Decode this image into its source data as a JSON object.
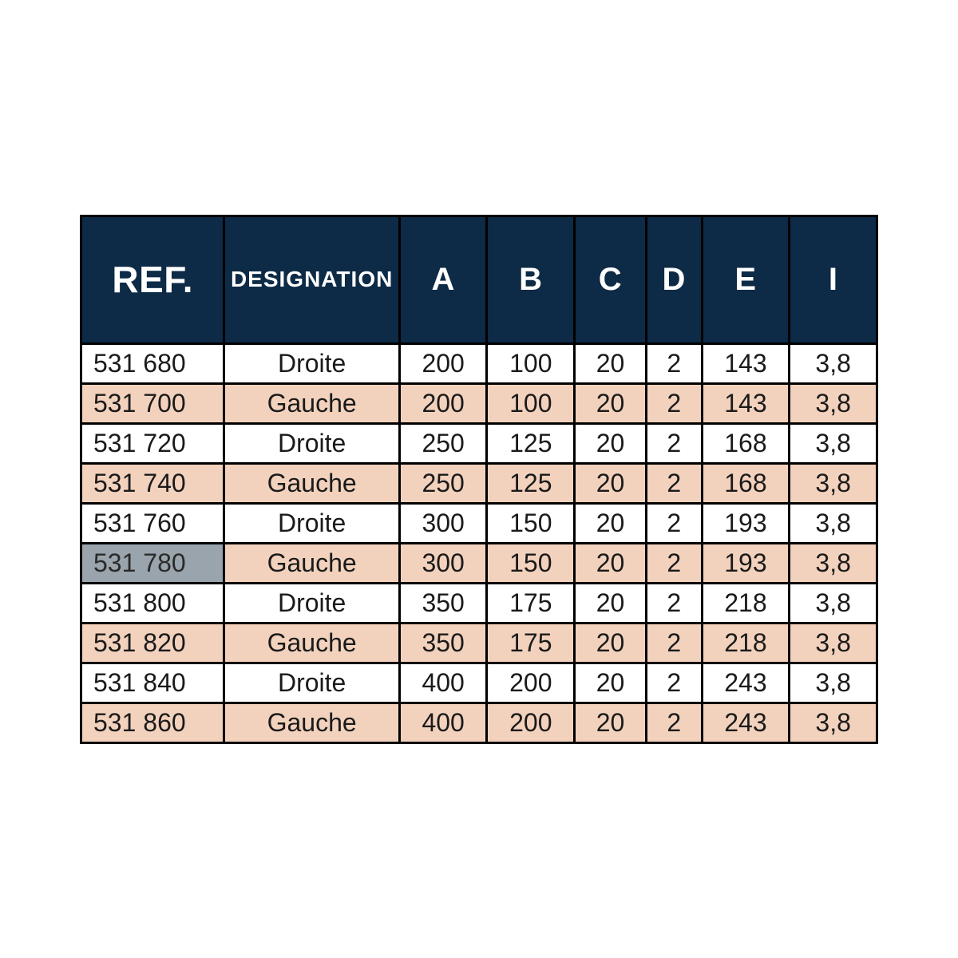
{
  "colors": {
    "header_bg": "#0d2a46",
    "header_fg": "#ffffff",
    "row_odd_bg": "#ffffff",
    "row_even_bg": "#f3d2bd",
    "highlight_bg": "#9aa4ac",
    "border": "#000000"
  },
  "table": {
    "columns": [
      {
        "key": "ref",
        "label": "REF.",
        "class": "col-ref"
      },
      {
        "key": "des",
        "label": "DESIGNATION",
        "class": "col-des"
      },
      {
        "key": "a",
        "label": "A",
        "class": "col-a"
      },
      {
        "key": "b",
        "label": "B",
        "class": "col-b"
      },
      {
        "key": "c",
        "label": "C",
        "class": "col-c"
      },
      {
        "key": "d",
        "label": "D",
        "class": "col-d"
      },
      {
        "key": "e",
        "label": "E",
        "class": "col-e"
      },
      {
        "key": "i",
        "label": "I",
        "class": "col-i"
      }
    ],
    "rows": [
      {
        "ref": "531 680",
        "des": "Droite",
        "a": "200",
        "b": "100",
        "c": "20",
        "d": "2",
        "e": "143",
        "i": "3,8"
      },
      {
        "ref": "531 700",
        "des": "Gauche",
        "a": "200",
        "b": "100",
        "c": "20",
        "d": "2",
        "e": "143",
        "i": "3,8"
      },
      {
        "ref": "531 720",
        "des": "Droite",
        "a": "250",
        "b": "125",
        "c": "20",
        "d": "2",
        "e": "168",
        "i": "3,8"
      },
      {
        "ref": "531 740",
        "des": "Gauche",
        "a": "250",
        "b": "125",
        "c": "20",
        "d": "2",
        "e": "168",
        "i": "3,8"
      },
      {
        "ref": "531 760",
        "des": "Droite",
        "a": "300",
        "b": "150",
        "c": "20",
        "d": "2",
        "e": "193",
        "i": "3,8"
      },
      {
        "ref": "531 780",
        "des": "Gauche",
        "a": "300",
        "b": "150",
        "c": "20",
        "d": "2",
        "e": "193",
        "i": "3,8",
        "highlight_ref": true
      },
      {
        "ref": "531 800",
        "des": "Droite",
        "a": "350",
        "b": "175",
        "c": "20",
        "d": "2",
        "e": "218",
        "i": "3,8"
      },
      {
        "ref": "531 820",
        "des": "Gauche",
        "a": "350",
        "b": "175",
        "c": "20",
        "d": "2",
        "e": "218",
        "i": "3,8"
      },
      {
        "ref": "531 840",
        "des": "Droite",
        "a": "400",
        "b": "200",
        "c": "20",
        "d": "2",
        "e": "243",
        "i": "3,8"
      },
      {
        "ref": "531 860",
        "des": "Gauche",
        "a": "400",
        "b": "200",
        "c": "20",
        "d": "2",
        "e": "243",
        "i": "3,8"
      }
    ]
  }
}
